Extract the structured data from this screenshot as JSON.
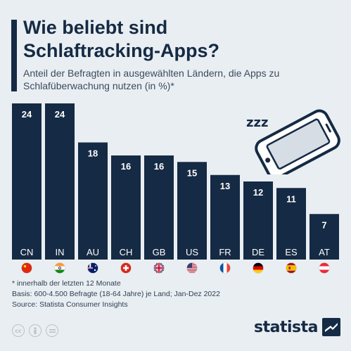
{
  "header": {
    "title": "Wie beliebt sind Schlaftracking-Apps?",
    "subtitle": "Anteil der Befragten in ausgewählten Ländern, die Apps zu Schlafüberwachung nutzen (in %)*"
  },
  "chart_data": {
    "type": "bar",
    "title": "Wie beliebt sind Schlaftracking-Apps?",
    "subtitle": "Anteil der Befragten in ausgewählten Ländern, die Apps zu Schlafüberwachung nutzen (in %)*",
    "categories": [
      "CN",
      "IN",
      "AU",
      "CH",
      "GB",
      "US",
      "FR",
      "DE",
      "ES",
      "AT"
    ],
    "values": [
      24,
      24,
      18,
      16,
      16,
      15,
      13,
      12,
      11,
      7
    ],
    "flags": [
      "china-flag",
      "india-flag",
      "australia-flag",
      "switzerland-flag",
      "uk-flag",
      "usa-flag",
      "france-flag",
      "germany-flag",
      "spain-flag",
      "austria-flag"
    ],
    "ylim": [
      0,
      24
    ],
    "grid": false,
    "bar_color": "#152a44",
    "label_color": "#ffffff"
  },
  "footnotes": {
    "note": "* innerhalb der letzten 12 Monate",
    "basis": "Basis: 600-4.500 Befragte (18-64 Jahre) je Land; Jan-Dez 2022",
    "source": "Source: Statista Consumer Insights"
  },
  "branding": {
    "logo_text": "statista",
    "license_icons": [
      "cc-icon",
      "person-icon",
      "equals-icon"
    ]
  },
  "colors": {
    "background": "#e9eef2",
    "accent": "#152a44",
    "text": "#2e3f52"
  },
  "illustration": {
    "icon": "sleeping-phone-icon",
    "zzz": "zzz"
  }
}
